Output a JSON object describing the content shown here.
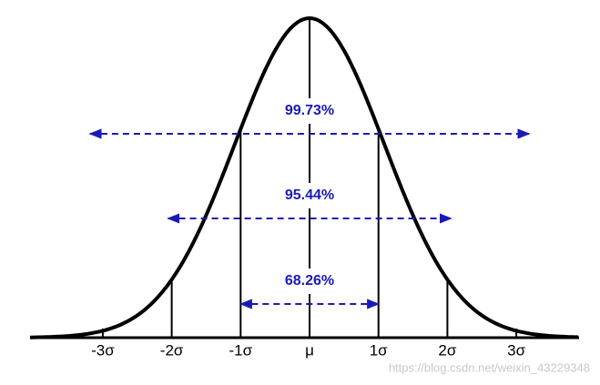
{
  "axis_labels": [
    "-3σ",
    "-2σ",
    "-1σ",
    "μ",
    "1σ",
    "2σ",
    "3σ"
  ],
  "intervals": [
    "68.26%",
    "95.44%",
    "99.73%"
  ],
  "watermark": "https://blog.csdn.net/weixin_43229348"
}
